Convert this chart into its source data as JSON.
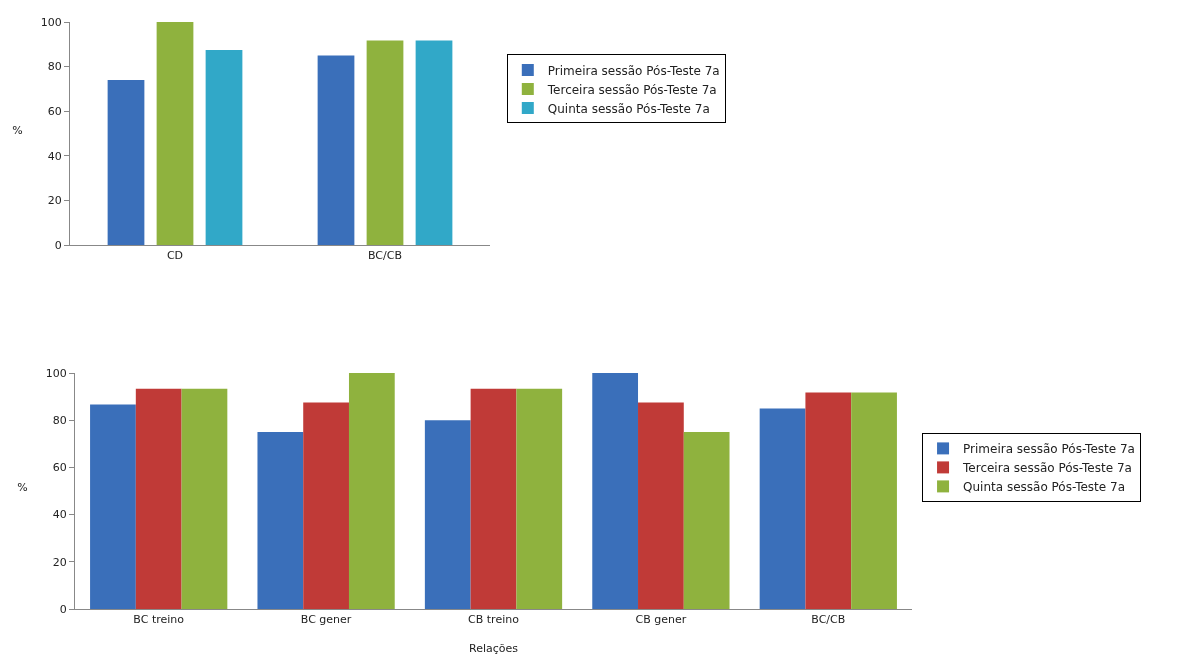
{
  "chart_data": [
    {
      "type": "bar",
      "ylabel": "%",
      "categories": [
        "CD",
        "BC/CB"
      ],
      "series": [
        {
          "name": "Primeira sessão Pós-Teste 7a",
          "color": "#3a6fba",
          "values": [
            74,
            85
          ]
        },
        {
          "name": "Terceira sessão Pós-Teste 7a",
          "color": "#8fb23e",
          "values": [
            100,
            91.7
          ]
        },
        {
          "name": "Quinta sessão Pós-Teste 7a",
          "color": "#31a8c8",
          "values": [
            87.5,
            91.7
          ]
        }
      ],
      "ylim": [
        0,
        100
      ],
      "yticks": [
        0,
        20,
        40,
        60,
        80,
        100
      ],
      "grid": false,
      "legend": "right"
    },
    {
      "type": "bar",
      "ylabel": "%",
      "xlabel": "Relações",
      "categories": [
        "BC treino",
        "BC gener",
        "CB treino",
        "CB gener",
        "BC/CB"
      ],
      "series": [
        {
          "name": "Primeira sessão Pós-Teste 7a",
          "color": "#3a6fba",
          "values": [
            86.7,
            75,
            80,
            100,
            85
          ]
        },
        {
          "name": "Terceira sessão Pós-Teste 7a",
          "color": "#c03a37",
          "values": [
            93.3,
            87.5,
            93.3,
            87.5,
            91.7
          ]
        },
        {
          "name": "Quinta sessão Pós-Teste 7a",
          "color": "#8fb23e",
          "values": [
            93.3,
            100,
            93.3,
            75,
            91.7
          ]
        }
      ],
      "ylim": [
        0,
        100
      ],
      "yticks": [
        0,
        20,
        40,
        60,
        80,
        100
      ],
      "grid": false,
      "legend": "right"
    }
  ]
}
